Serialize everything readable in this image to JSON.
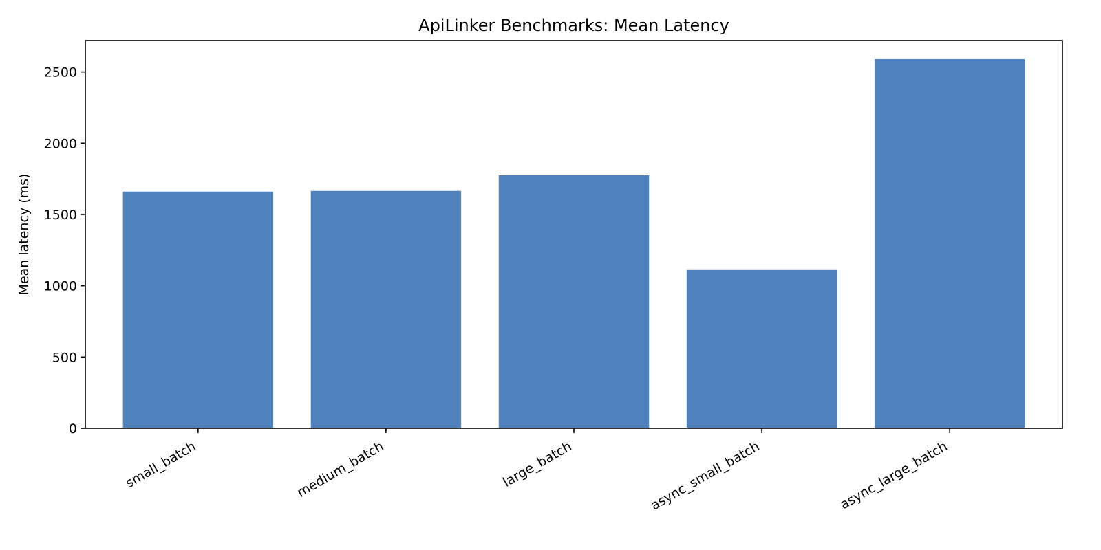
{
  "chart_data": {
    "type": "bar",
    "title": "ApiLinker Benchmarks: Mean Latency",
    "xlabel": "",
    "ylabel": "Mean latency (ms)",
    "categories": [
      "small_batch",
      "medium_batch",
      "large_batch",
      "async_small_batch",
      "async_large_batch"
    ],
    "values": [
      1660,
      1665,
      1775,
      1115,
      2590
    ],
    "ylim": [
      0,
      2720
    ],
    "yticks": [
      0,
      500,
      1000,
      1500,
      2000,
      2500
    ],
    "grid": false,
    "bar_color": "#4f81bd"
  }
}
